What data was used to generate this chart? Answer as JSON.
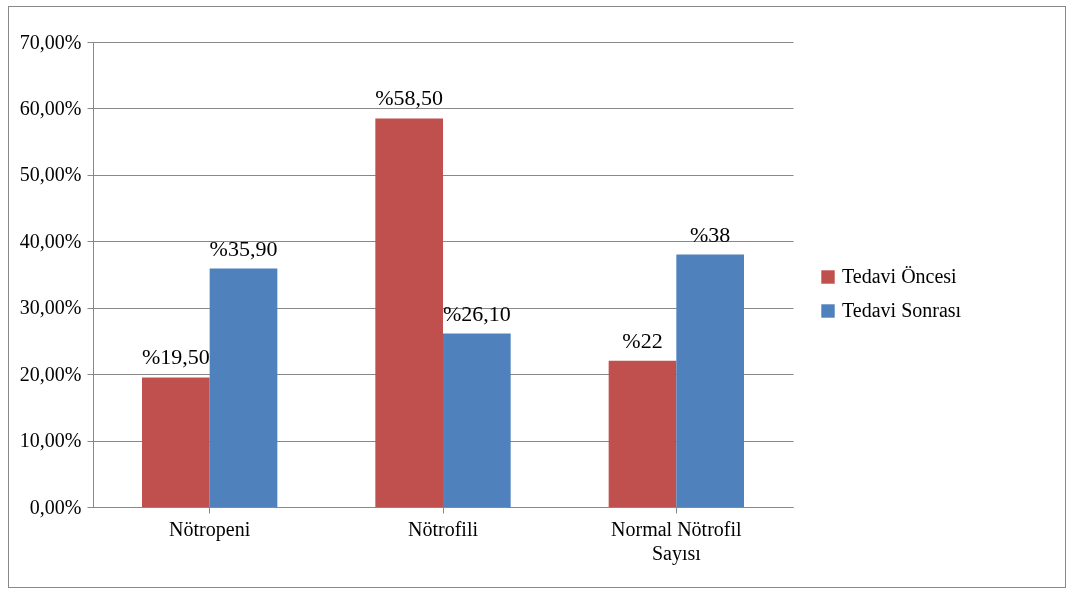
{
  "chart_data": {
    "type": "bar",
    "categories": [
      "Nötropeni",
      "Nötrofili",
      "Normal Nötrofil Sayısı"
    ],
    "series": [
      {
        "name": "Tedavi Öncesi",
        "color": "#c0504d",
        "values": [
          19.5,
          58.5,
          22
        ],
        "value_labels": [
          "%19,50",
          "%58,50",
          "%22"
        ]
      },
      {
        "name": "Tedavi Sonrası",
        "color": "#4f81bd",
        "values": [
          35.9,
          26.1,
          38
        ],
        "value_labels": [
          "%35,90",
          "%26,10",
          "%38"
        ]
      }
    ],
    "ylim": [
      0,
      70
    ],
    "yticks": [
      {
        "value": 0,
        "label": "0,00%"
      },
      {
        "value": 10,
        "label": "10,00%"
      },
      {
        "value": 20,
        "label": "20,00%"
      },
      {
        "value": 30,
        "label": "30,00%"
      },
      {
        "value": 40,
        "label": "40,00%"
      },
      {
        "value": 50,
        "label": "50,00%"
      },
      {
        "value": 60,
        "label": "60,00%"
      },
      {
        "value": 70,
        "label": "70,00%"
      }
    ],
    "grid": "y",
    "legend": "right"
  }
}
